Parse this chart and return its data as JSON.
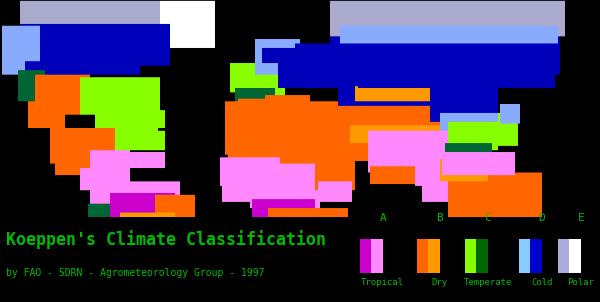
{
  "background_color": "#000000",
  "title": "Koeppen's Climate Classification",
  "subtitle": "by FAO - SDRN - Agrometeorology Group - 1997",
  "title_color": "#00bb00",
  "subtitle_color": "#00bb00",
  "legend_label_color": "#00bb00",
  "legend_categories": [
    "A",
    "B",
    "C",
    "D",
    "E"
  ],
  "legend_labels": [
    "Tropical",
    "Dry",
    "Temperate",
    "Cold",
    "Polar"
  ],
  "legend_A_colors": [
    "#cc00cc",
    "#ff88ff"
  ],
  "legend_B_colors": [
    "#ff6600",
    "#ff9900"
  ],
  "legend_C_colors": [
    "#88ff00",
    "#006600"
  ],
  "legend_D_colors": [
    "#88ccff",
    "#0000cc"
  ],
  "legend_E_colors": [
    "#aaaadd",
    "#ffffff"
  ],
  "TROPICAL_A": "#ff88ff",
  "TROPICAL_AM": "#cc00cc",
  "DRY_B": "#ff6600",
  "DRY_BS": "#ff9900",
  "TEMP_C": "#88ff00",
  "TEMP_CF": "#006633",
  "COLD_D": "#88aaff",
  "COLD_DK": "#0000bb",
  "POLAR_ET": "#aaaacc",
  "ICE_EF": "#ffffff"
}
